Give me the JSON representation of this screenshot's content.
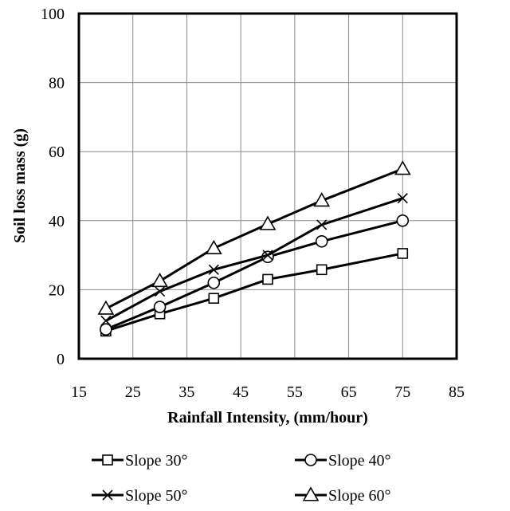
{
  "chart_data": {
    "type": "line",
    "xlabel": "Rainfall Intensity, (mm/hour)",
    "ylabel": "Soil loss mass (g)",
    "xlim": [
      15,
      85
    ],
    "ylim": [
      0,
      100
    ],
    "xticks": [
      15,
      25,
      35,
      45,
      55,
      65,
      75,
      85
    ],
    "yticks": [
      0,
      20,
      40,
      60,
      80,
      100
    ],
    "grid": true,
    "legend_position": "bottom",
    "x": [
      20,
      30,
      40,
      50,
      60,
      75
    ],
    "series": [
      {
        "name": "Slope 30°",
        "marker": "square",
        "values": [
          8.0,
          13.0,
          17.5,
          23.0,
          25.8,
          30.5
        ]
      },
      {
        "name": "Slope 40°",
        "marker": "circle",
        "values": [
          8.5,
          15.0,
          22.0,
          29.5,
          34.0,
          40.0
        ]
      },
      {
        "name": "Slope 50°",
        "marker": "x",
        "values": [
          11.0,
          19.5,
          25.8,
          30.0,
          38.8,
          46.5
        ]
      },
      {
        "name": "Slope 60°",
        "marker": "triangle",
        "values": [
          14.5,
          22.5,
          32.0,
          39.0,
          45.8,
          55.0
        ]
      }
    ]
  }
}
